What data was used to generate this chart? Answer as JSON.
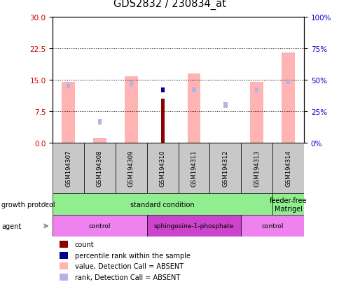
{
  "title": "GDS2832 / 230834_at",
  "samples": [
    "GSM194307",
    "GSM194308",
    "GSM194309",
    "GSM194310",
    "GSM194311",
    "GSM194312",
    "GSM194313",
    "GSM194314"
  ],
  "value_absent": [
    14.5,
    1.2,
    15.8,
    0.0,
    16.5,
    0.0,
    14.5,
    21.5
  ],
  "rank_absent": [
    13.5,
    5.0,
    14.0,
    0.0,
    12.5,
    9.0,
    12.5,
    14.5
  ],
  "count": [
    0.0,
    0.0,
    0.0,
    10.5,
    0.0,
    0.0,
    0.0,
    0.0
  ],
  "percentile": [
    0.0,
    0.0,
    0.0,
    12.5,
    0.0,
    0.0,
    0.0,
    0.0
  ],
  "ylim_left": [
    0,
    30
  ],
  "yticks_left": [
    0,
    7.5,
    15,
    22.5,
    30
  ],
  "yticks_right": [
    0,
    25,
    50,
    75,
    100
  ],
  "ytick_labels_right": [
    "0%",
    "25%",
    "50%",
    "75%",
    "100%"
  ],
  "color_value_absent": "#ffb3b3",
  "color_rank_absent": "#b3b3e6",
  "color_count": "#8b0000",
  "color_percentile": "#00008b",
  "growth_color": "#90ee90",
  "agent_color_light": "#ee82ee",
  "agent_color_medium": "#cc44cc",
  "ylabel_left_color": "#cc0000",
  "ylabel_right_color": "#0000cc",
  "gp_spans": [
    [
      0,
      7,
      "standard condition"
    ],
    [
      7,
      8,
      "feeder-free\nMatrigel"
    ]
  ],
  "agent_spans": [
    [
      0,
      3,
      "control",
      "#ee82ee"
    ],
    [
      3,
      6,
      "sphingosine-1-phosphate",
      "#cc44cc"
    ],
    [
      6,
      8,
      "control",
      "#ee82ee"
    ]
  ],
  "legend_items": [
    [
      "#8b0000",
      "count"
    ],
    [
      "#00008b",
      "percentile rank within the sample"
    ],
    [
      "#ffb3b3",
      "value, Detection Call = ABSENT"
    ],
    [
      "#b3b3e6",
      "rank, Detection Call = ABSENT"
    ]
  ]
}
